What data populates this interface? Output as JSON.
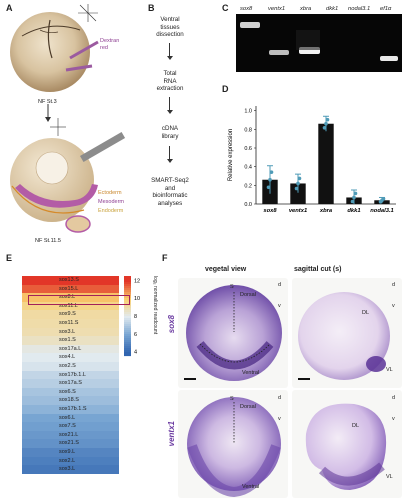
{
  "panels": {
    "A": {
      "label": "A",
      "dextran": "Dextran\nred",
      "stage1": "NF St.3",
      "stage2": "NF St.11.5",
      "germ_layers": [
        "Ectoderm",
        "Mesoderm",
        "Endoderm"
      ],
      "axis_top": [
        "d",
        "v"
      ],
      "axis_mid": [
        "d",
        "v"
      ]
    },
    "B": {
      "label": "B",
      "steps": [
        "Ventral\ntissues\ndissection",
        "Total\nRNA\nextraction",
        "cDNA\nlibrary",
        "SMART-Seq2\nand\nbioinformatic\nanalyses"
      ]
    },
    "C": {
      "label": "C",
      "genes": [
        "sox8",
        "ventx1",
        "xbra",
        "dkk1",
        "nodal3.1",
        "ef1α"
      ]
    },
    "D": {
      "label": "D",
      "ylabel": "Relative expression"
    },
    "E": {
      "label": "E",
      "colorbar_label": "log₂ normalized readcount",
      "colorbar_ticks": [
        "12",
        "10",
        "8",
        "6",
        "4"
      ],
      "rows": [
        "sox13.S",
        "sox15.L",
        "sox8.L",
        "sox11.L",
        "sox9.S",
        "sox11.S",
        "sox3.L",
        "sox1.S",
        "sox17a.L",
        "sox4.L",
        "sox2.S",
        "sox17b.1.L",
        "sox17a.S",
        "sox6.S",
        "sox18.S",
        "sox17b.1.S",
        "sox6.L",
        "sox7.S",
        "sox21.L",
        "sox21.S",
        "sox9.L",
        "sox2.L",
        "sox3.L"
      ]
    },
    "F": {
      "label": "F",
      "col1": "vegetal view",
      "col2": "sagittal cut (s)",
      "row1": "sox8",
      "row2": "ventx1",
      "dorsal": "Dorsal",
      "ventral": "Ventral",
      "s": "S",
      "dl": "DL",
      "vl": "VL",
      "axis": [
        "d",
        "v"
      ]
    }
  },
  "chart_data": {
    "type": "bar",
    "title": "",
    "xlabel": "",
    "ylabel": "Relative expression",
    "categories": [
      "sox8",
      "ventx1",
      "xbra",
      "dkk1",
      "nodal3.1"
    ],
    "values": [
      0.26,
      0.22,
      0.86,
      0.07,
      0.04
    ],
    "errors": [
      0.15,
      0.1,
      0.08,
      0.08,
      0.03
    ],
    "yticks": [
      "0.0",
      "0.2",
      "0.4",
      "0.6",
      "0.8",
      "1.0"
    ],
    "ylim": [
      0,
      1.05
    ],
    "bar_color": "#111111",
    "point_color": "#4f9bb7"
  },
  "heatmap_values": [
    12,
    11.5,
    10.2,
    9.6,
    9.2,
    9.1,
    9.0,
    8.7,
    8.2,
    8.0,
    7.8,
    7.4,
    7.2,
    6.9,
    6.7,
    6.4,
    6.0,
    5.8,
    5.6,
    5.4,
    5.0,
    4.8,
    4.6
  ],
  "colors": {
    "highlight_box": "#a3205a",
    "embryo_purple": "#7a58b6",
    "mesoderm": "#b35ca6",
    "ectoderm_text": "#c9872c",
    "endoderm_text": "#c9a23c"
  }
}
